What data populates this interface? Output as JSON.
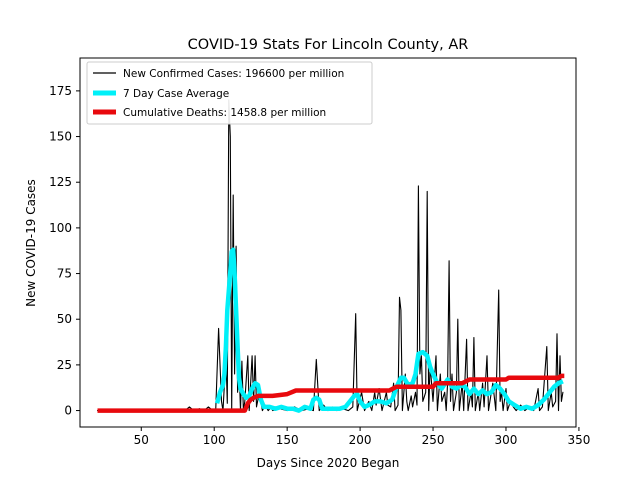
{
  "chart_data": {
    "type": "line",
    "title": "COVID-19 Stats For Lincoln County, AR",
    "xlabel": "Days Since 2020 Began",
    "ylabel": "New COVID-19 Cases",
    "xlim": [
      8,
      348
    ],
    "ylim": [
      -9,
      193
    ],
    "xticks": [
      50,
      100,
      150,
      200,
      250,
      300,
      350
    ],
    "yticks": [
      0,
      25,
      50,
      75,
      100,
      125,
      150,
      175
    ],
    "grid": false,
    "legend_position": "top-left",
    "series": [
      {
        "name": "New Confirmed Cases: 196600 per million",
        "color": "#000000",
        "style": "thin",
        "points": [
          [
            20,
            0
          ],
          [
            80,
            0
          ],
          [
            83,
            2
          ],
          [
            86,
            0
          ],
          [
            90,
            1
          ],
          [
            93,
            0
          ],
          [
            96,
            2
          ],
          [
            99,
            0
          ],
          [
            101,
            0
          ],
          [
            103,
            45
          ],
          [
            105,
            5
          ],
          [
            106,
            0
          ],
          [
            108,
            30
          ],
          [
            109,
            4
          ],
          [
            110,
            170
          ],
          [
            111,
            150
          ],
          [
            112,
            0
          ],
          [
            113,
            118
          ],
          [
            114,
            20
          ],
          [
            115,
            90
          ],
          [
            116,
            10
          ],
          [
            117,
            25
          ],
          [
            118,
            0
          ],
          [
            119,
            27
          ],
          [
            120,
            0
          ],
          [
            121,
            5
          ],
          [
            123,
            30
          ],
          [
            124,
            0
          ],
          [
            126,
            30
          ],
          [
            127,
            5
          ],
          [
            128,
            30
          ],
          [
            129,
            2
          ],
          [
            131,
            10
          ],
          [
            133,
            0
          ],
          [
            135,
            3
          ],
          [
            137,
            0
          ],
          [
            139,
            2
          ],
          [
            140,
            0
          ],
          [
            145,
            1
          ],
          [
            150,
            0
          ],
          [
            155,
            2
          ],
          [
            160,
            0
          ],
          [
            165,
            1
          ],
          [
            168,
            0
          ],
          [
            170,
            28
          ],
          [
            172,
            0
          ],
          [
            175,
            3
          ],
          [
            178,
            0
          ],
          [
            181,
            2
          ],
          [
            184,
            0
          ],
          [
            188,
            1
          ],
          [
            192,
            0
          ],
          [
            195,
            2
          ],
          [
            197,
            53
          ],
          [
            198,
            0
          ],
          [
            201,
            10
          ],
          [
            203,
            0
          ],
          [
            206,
            5
          ],
          [
            208,
            0
          ],
          [
            210,
            10
          ],
          [
            211,
            3
          ],
          [
            213,
            12
          ],
          [
            215,
            0
          ],
          [
            218,
            10
          ],
          [
            219,
            3
          ],
          [
            221,
            2
          ],
          [
            223,
            15
          ],
          [
            224,
            0
          ],
          [
            226,
            3
          ],
          [
            227,
            62
          ],
          [
            228,
            55
          ],
          [
            229,
            0
          ],
          [
            231,
            20
          ],
          [
            232,
            5
          ],
          [
            233,
            0
          ],
          [
            235,
            8
          ],
          [
            236,
            2
          ],
          [
            238,
            10
          ],
          [
            239,
            3
          ],
          [
            240,
            123
          ],
          [
            241,
            20
          ],
          [
            242,
            30
          ],
          [
            243,
            5
          ],
          [
            245,
            10
          ],
          [
            246,
            120
          ],
          [
            247,
            0
          ],
          [
            248,
            25
          ],
          [
            250,
            5
          ],
          [
            252,
            30
          ],
          [
            253,
            0
          ],
          [
            255,
            20
          ],
          [
            256,
            5
          ],
          [
            258,
            10
          ],
          [
            259,
            0
          ],
          [
            260,
            15
          ],
          [
            261,
            82
          ],
          [
            262,
            5
          ],
          [
            263,
            20
          ],
          [
            264,
            0
          ],
          [
            266,
            10
          ],
          [
            267,
            50
          ],
          [
            268,
            0
          ],
          [
            270,
            15
          ],
          [
            271,
            0
          ],
          [
            273,
            39
          ],
          [
            274,
            0
          ],
          [
            276,
            10
          ],
          [
            277,
            2
          ],
          [
            278,
            40
          ],
          [
            279,
            0
          ],
          [
            281,
            10
          ],
          [
            282,
            0
          ],
          [
            284,
            15
          ],
          [
            285,
            2
          ],
          [
            287,
            30
          ],
          [
            288,
            0
          ],
          [
            289,
            5
          ],
          [
            291,
            15
          ],
          [
            293,
            0
          ],
          [
            295,
            66
          ],
          [
            296,
            5
          ],
          [
            297,
            10
          ],
          [
            298,
            0
          ],
          [
            300,
            12
          ],
          [
            301,
            0
          ],
          [
            303,
            5
          ],
          [
            305,
            2
          ],
          [
            307,
            0
          ],
          [
            310,
            3
          ],
          [
            313,
            0
          ],
          [
            316,
            2
          ],
          [
            319,
            0
          ],
          [
            322,
            12
          ],
          [
            323,
            0
          ],
          [
            325,
            2
          ],
          [
            328,
            35
          ],
          [
            329,
            0
          ],
          [
            331,
            10
          ],
          [
            332,
            2
          ],
          [
            334,
            5
          ],
          [
            335,
            42
          ],
          [
            336,
            0
          ],
          [
            337,
            30
          ],
          [
            338,
            5
          ],
          [
            339,
            10
          ]
        ]
      },
      {
        "name": "7 Day Case Average",
        "color": "#00f0f8",
        "style": "thick",
        "points": [
          [
            102,
            4
          ],
          [
            104,
            10
          ],
          [
            106,
            14
          ],
          [
            107,
            20
          ],
          [
            108,
            35
          ],
          [
            109,
            55
          ],
          [
            111,
            76
          ],
          [
            112,
            87
          ],
          [
            113,
            88
          ],
          [
            114,
            75
          ],
          [
            115,
            55
          ],
          [
            116,
            35
          ],
          [
            117,
            18
          ],
          [
            118,
            12
          ],
          [
            120,
            9
          ],
          [
            122,
            7
          ],
          [
            124,
            8
          ],
          [
            126,
            12
          ],
          [
            128,
            15
          ],
          [
            130,
            14
          ],
          [
            131,
            10
          ],
          [
            132,
            6
          ],
          [
            134,
            2
          ],
          [
            138,
            2
          ],
          [
            142,
            1
          ],
          [
            146,
            2
          ],
          [
            150,
            1
          ],
          [
            154,
            1
          ],
          [
            158,
            0
          ],
          [
            162,
            2
          ],
          [
            166,
            1
          ],
          [
            168,
            6
          ],
          [
            170,
            7
          ],
          [
            172,
            6
          ],
          [
            174,
            1
          ],
          [
            178,
            1
          ],
          [
            182,
            1
          ],
          [
            186,
            1
          ],
          [
            190,
            2
          ],
          [
            193,
            5
          ],
          [
            196,
            8
          ],
          [
            198,
            9
          ],
          [
            200,
            5
          ],
          [
            203,
            2
          ],
          [
            206,
            3
          ],
          [
            210,
            5
          ],
          [
            214,
            5
          ],
          [
            218,
            4
          ],
          [
            222,
            6
          ],
          [
            225,
            13
          ],
          [
            228,
            18
          ],
          [
            230,
            18
          ],
          [
            233,
            14
          ],
          [
            236,
            15
          ],
          [
            238,
            20
          ],
          [
            240,
            31
          ],
          [
            243,
            32
          ],
          [
            246,
            30
          ],
          [
            248,
            24
          ],
          [
            250,
            20
          ],
          [
            253,
            15
          ],
          [
            256,
            12
          ],
          [
            260,
            17
          ],
          [
            263,
            13
          ],
          [
            266,
            12
          ],
          [
            269,
            14
          ],
          [
            272,
            13
          ],
          [
            275,
            9
          ],
          [
            278,
            12
          ],
          [
            281,
            9
          ],
          [
            284,
            11
          ],
          [
            287,
            9
          ],
          [
            290,
            10
          ],
          [
            293,
            14
          ],
          [
            296,
            12
          ],
          [
            299,
            9
          ],
          [
            302,
            5
          ],
          [
            306,
            3
          ],
          [
            310,
            1
          ],
          [
            314,
            2
          ],
          [
            318,
            1
          ],
          [
            322,
            3
          ],
          [
            326,
            6
          ],
          [
            330,
            10
          ],
          [
            333,
            13
          ],
          [
            336,
            15
          ],
          [
            339,
            16
          ]
        ]
      },
      {
        "name": "Cumulative Deaths: 1458.8 per million",
        "color": "#e8090d",
        "style": "thick",
        "points": [
          [
            20,
            0
          ],
          [
            121,
            0
          ],
          [
            123,
            4
          ],
          [
            125,
            6
          ],
          [
            127,
            7
          ],
          [
            130,
            8
          ],
          [
            140,
            8
          ],
          [
            150,
            9
          ],
          [
            156,
            11
          ],
          [
            165,
            11
          ],
          [
            175,
            11
          ],
          [
            195,
            11
          ],
          [
            210,
            11
          ],
          [
            220,
            11
          ],
          [
            225,
            13
          ],
          [
            250,
            13
          ],
          [
            252,
            15
          ],
          [
            270,
            15
          ],
          [
            275,
            17
          ],
          [
            300,
            17
          ],
          [
            302,
            18
          ],
          [
            330,
            18
          ],
          [
            336,
            18
          ],
          [
            338,
            19
          ],
          [
            340,
            19
          ]
        ]
      }
    ]
  }
}
